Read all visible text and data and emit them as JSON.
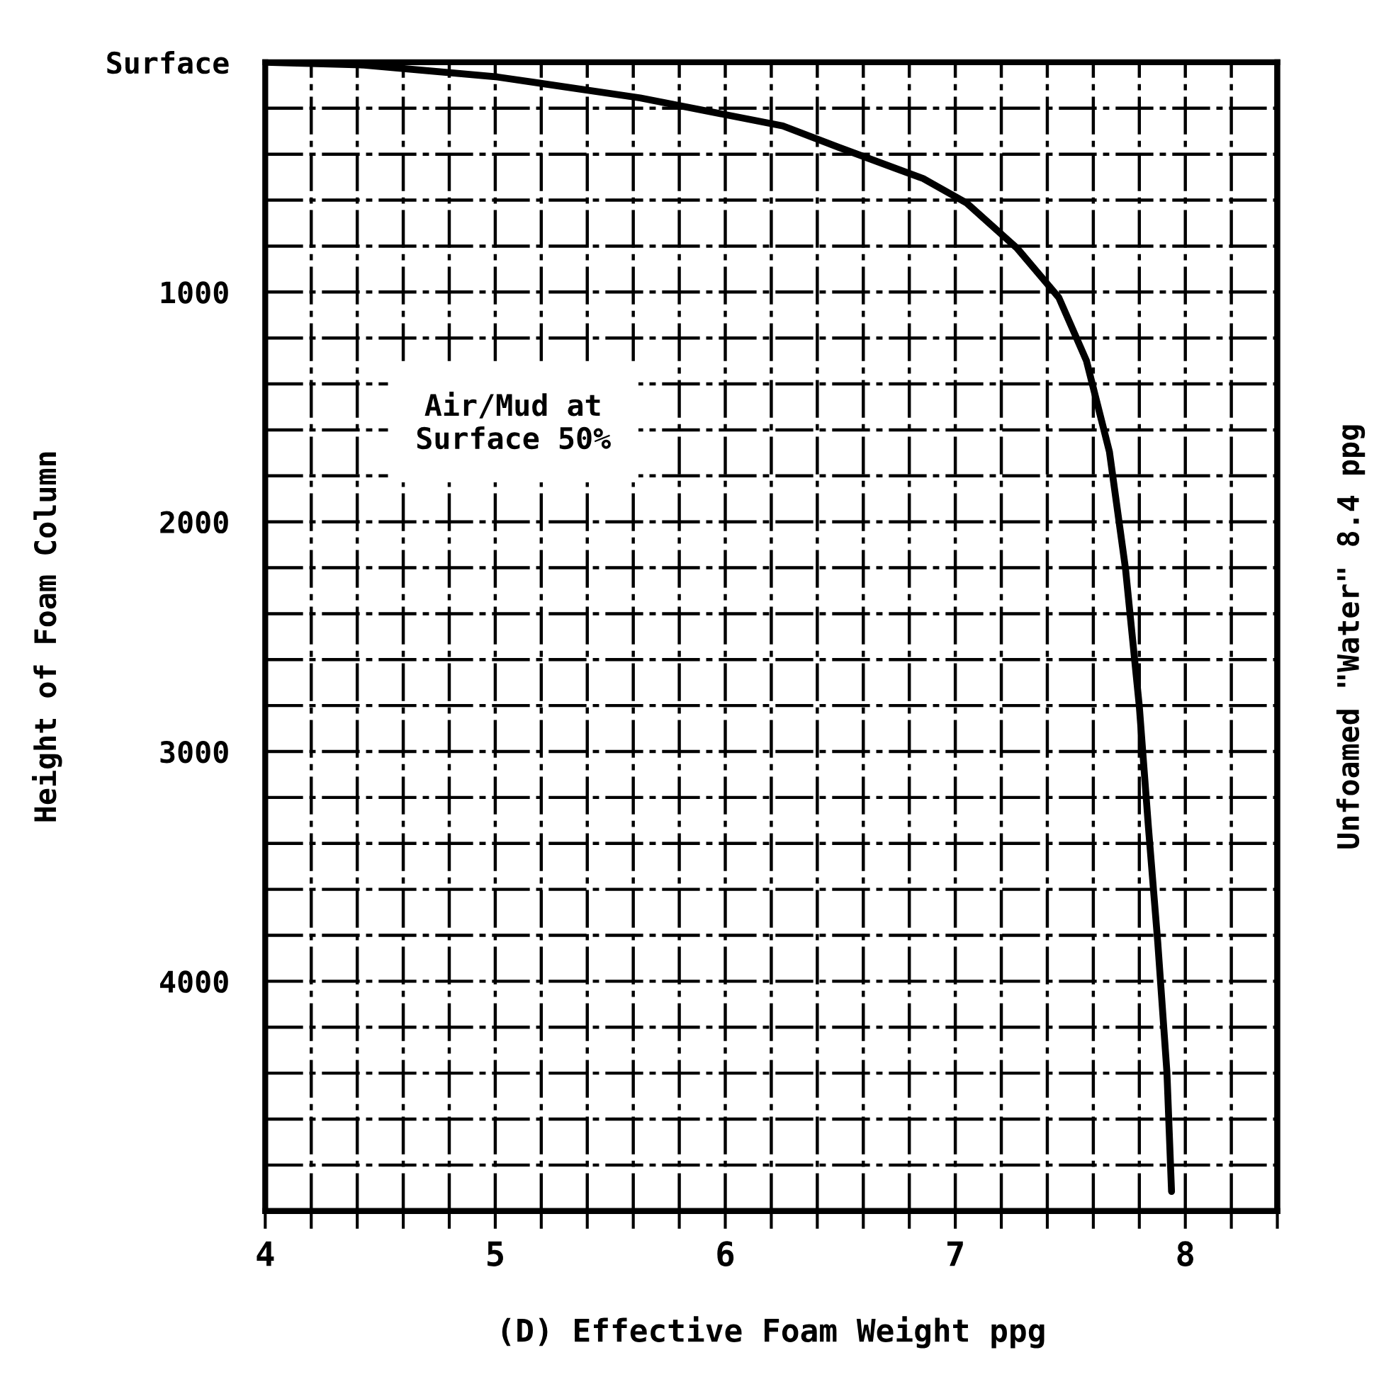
{
  "chart_data": {
    "type": "line",
    "xlabel": "(D) Effective Foam Weight ppg",
    "ylabel": "Height of Foam Column",
    "x": [
      4.0,
      4.43,
      5.01,
      5.63,
      6.25,
      6.49,
      6.86,
      7.05,
      7.27,
      7.45,
      7.57,
      7.67,
      7.74,
      7.8,
      7.84,
      7.88,
      7.92,
      7.94
    ],
    "series": [
      {
        "color": "#000000",
        "values": [
          0,
          12,
          64,
          155,
          277,
          369,
          506,
          613,
          811,
          1024,
          1299,
          1695,
          2205,
          2804,
          3335,
          3829,
          4396,
          4915
        ]
      }
    ],
    "xlim": [
      4,
      8.4
    ],
    "ylim": [
      5000,
      0
    ],
    "xticks": [
      4,
      {
        "value": 4.2,
        "label": null
      },
      {
        "value": 4.4,
        "label": null
      },
      {
        "value": 4.6,
        "label": null
      },
      {
        "value": 4.8,
        "label": null
      },
      5,
      {
        "value": 5.2,
        "label": null
      },
      {
        "value": 5.4,
        "label": null
      },
      {
        "value": 5.6,
        "label": null
      },
      {
        "value": 5.8,
        "label": null
      },
      6,
      {
        "value": 6.2,
        "label": null
      },
      {
        "value": 6.4,
        "label": null
      },
      {
        "value": 6.6,
        "label": null
      },
      {
        "value": 6.8,
        "label": null
      },
      7,
      {
        "value": 7.2,
        "label": null
      },
      {
        "value": 7.4,
        "label": null
      },
      {
        "value": 7.6,
        "label": null
      },
      {
        "value": 7.8,
        "label": null
      },
      8,
      {
        "value": 8.2,
        "label": null
      },
      {
        "value": 8.4,
        "label": null
      }
    ],
    "yticks": [
      {
        "value": 0,
        "label": "Surface"
      },
      {
        "value": 200,
        "label": null
      },
      {
        "value": 400,
        "label": null
      },
      {
        "value": 600,
        "label": null
      },
      {
        "value": 800,
        "label": null
      },
      1000,
      {
        "value": 1200,
        "label": null
      },
      {
        "value": 1400,
        "label": null
      },
      {
        "value": 1600,
        "label": null
      },
      {
        "value": 1800,
        "label": null
      },
      2000,
      {
        "value": 2200,
        "label": null
      },
      {
        "value": 2400,
        "label": null
      },
      {
        "value": 2600,
        "label": null
      },
      {
        "value": 2800,
        "label": null
      },
      3000,
      {
        "value": 3200,
        "label": null
      },
      {
        "value": 3400,
        "label": null
      },
      {
        "value": 3600,
        "label": null
      },
      {
        "value": 3800,
        "label": null
      },
      4000,
      {
        "value": 4200,
        "label": null
      },
      {
        "value": 4400,
        "label": null
      },
      {
        "value": 4600,
        "label": null
      },
      {
        "value": 4800,
        "label": null
      }
    ],
    "grid": true,
    "line_style": "solid",
    "ref_lines": [
      {
        "axis": "x",
        "value": 8.4,
        "label": "Unfoamed \"Water\" 8.4 ppg",
        "color": "#000000"
      }
    ],
    "annotations": [
      "Air/Mud at\nSurface 50%"
    ]
  }
}
